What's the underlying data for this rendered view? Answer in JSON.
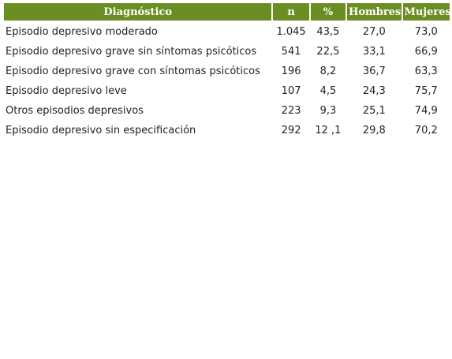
{
  "table": {
    "headers": {
      "diagnostico": "Diagnóstico",
      "n": "n",
      "pct": "%",
      "hombres": "Hombres",
      "mujeres": "Mujeres"
    },
    "rows": [
      {
        "diagnostico": "Episodio depresivo moderado",
        "n": "1.045",
        "pct": "43,5",
        "hombres": "27,0",
        "mujeres": "73,0"
      },
      {
        "diagnostico": "Episodio depresivo grave sin síntomas psicóticos",
        "n": "541",
        "pct": "22,5",
        "hombres": "33,1",
        "mujeres": "66,9"
      },
      {
        "diagnostico": "Episodio depresivo grave con síntomas psicóticos",
        "n": "196",
        "pct": "8,2",
        "hombres": "36,7",
        "mujeres": "63,3"
      },
      {
        "diagnostico": "Episodio depresivo leve",
        "n": "107",
        "pct": "4,5",
        "hombres": "24,3",
        "mujeres": "75,7"
      },
      {
        "diagnostico": "Otros episodios depresivos",
        "n": "223",
        "pct": "9,3",
        "hombres": "25,1",
        "mujeres": "74,9"
      },
      {
        "diagnostico": "Episodio depresivo sin especificación",
        "n": "292",
        "pct": "12 ,1",
        "hombres": "29,8",
        "mujeres": "70,2"
      }
    ]
  },
  "colors": {
    "header_bg": "#6b8e23",
    "header_text": "#ffffff"
  }
}
